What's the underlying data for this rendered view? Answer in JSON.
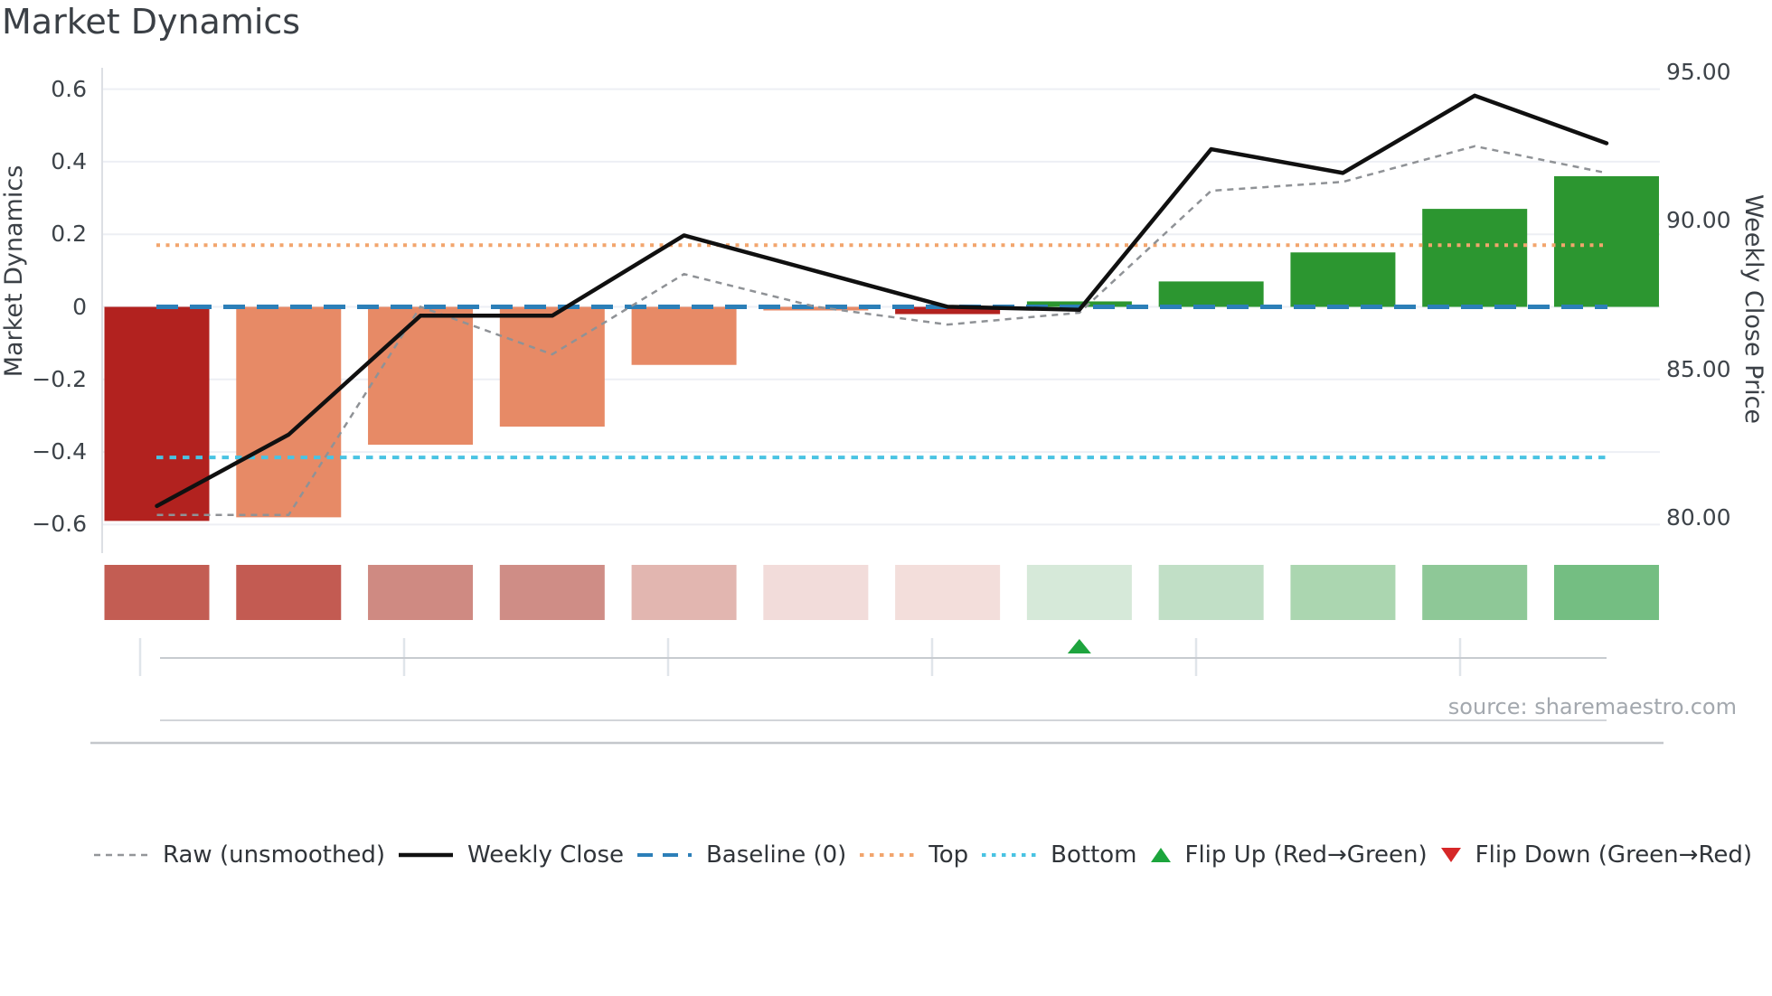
{
  "title": "Market Dynamics",
  "source": "source: sharemaestro.com",
  "left_axis": {
    "title": "Market Dynamics",
    "tick_labels": [
      "0.6",
      "0.4",
      "0.2",
      "0",
      "−0.2",
      "−0.4",
      "−0.6"
    ],
    "tick_values": [
      0.6,
      0.4,
      0.2,
      0,
      -0.2,
      -0.4,
      -0.6
    ]
  },
  "right_axis": {
    "title": "Weekly Close Price",
    "tick_labels": [
      "95.00",
      "90.00",
      "85.00",
      "80.00"
    ],
    "tick_values": [
      95,
      90,
      85,
      80
    ]
  },
  "legend": [
    {
      "label": "Raw (unsmoothed)",
      "swatch": "dash",
      "color": "#939699"
    },
    {
      "label": "Weekly Close",
      "swatch": "solid",
      "color": "#101010"
    },
    {
      "label": "Baseline (0)",
      "swatch": "longdash",
      "color": "#2c7fb8"
    },
    {
      "label": "Top",
      "swatch": "dot",
      "color": "#f2a56d"
    },
    {
      "label": "Bottom",
      "swatch": "dot",
      "color": "#49c3e3"
    },
    {
      "label": "Flip Up (Red→Green)",
      "swatch": "tri-up",
      "color": "#1ca53c"
    },
    {
      "label": "Flip Down (Green→Red)",
      "swatch": "tri-down",
      "color": "#d62728"
    }
  ],
  "chart_data": {
    "type": "bar+line combo with heatmap strip",
    "n_points": 12,
    "grid": true,
    "legend_position": "bottom",
    "ylim_left": [
      -0.68,
      0.66
    ],
    "ylim_right": [
      78.8,
      95.2
    ],
    "bars": {
      "name": "Market Dynamics score",
      "axis": "left",
      "values": [
        -0.59,
        -0.58,
        -0.38,
        -0.33,
        -0.16,
        -0.01,
        -0.02,
        0.015,
        0.07,
        0.15,
        0.27,
        0.36
      ],
      "colors": [
        "#b2221f",
        "#e78a66",
        "#e78a66",
        "#e78a66",
        "#e78a66",
        "#e78a66",
        "#b2221f",
        "#2c9630",
        "#2c9630",
        "#2c9630",
        "#2c9630",
        "#2c9630"
      ]
    },
    "series": [
      {
        "name": "Raw (unsmoothed)",
        "axis": "right",
        "color": "#8f9296",
        "style": "dashed",
        "values": [
          80.1,
          80.1,
          87.1,
          85.5,
          88.2,
          87.1,
          86.5,
          86.9,
          91.0,
          91.3,
          92.5,
          91.6
        ]
      },
      {
        "name": "Weekly Close",
        "axis": "right",
        "color": "#101010",
        "style": "solid",
        "values": [
          80.4,
          82.8,
          86.8,
          86.8,
          89.5,
          88.3,
          87.1,
          87.0,
          92.4,
          91.6,
          94.2,
          92.6
        ]
      }
    ],
    "hlines": {
      "baseline": {
        "value": 0,
        "color": "#2c7fb8",
        "style": "longdash"
      },
      "top": {
        "value": 0.17,
        "color": "#f2a56d",
        "style": "dot"
      },
      "bottom": {
        "value": -0.415,
        "color": "#49c3e3",
        "style": "dot"
      }
    },
    "heatmap_strip": {
      "colors": [
        "#c35d53",
        "#c35b52",
        "#cf8a82",
        "#cf8d86",
        "#e2b6b0",
        "#f2dcda",
        "#f3dedb",
        "#d6e9d9",
        "#c1dfc6",
        "#abd6b0",
        "#8ec897",
        "#74be82"
      ]
    },
    "flip_up_marker_indices": [
      7
    ],
    "flip_down_marker_indices": [],
    "marker_colors": {
      "flip_up": "#1ea43e",
      "flip_down": "#d62728"
    }
  }
}
